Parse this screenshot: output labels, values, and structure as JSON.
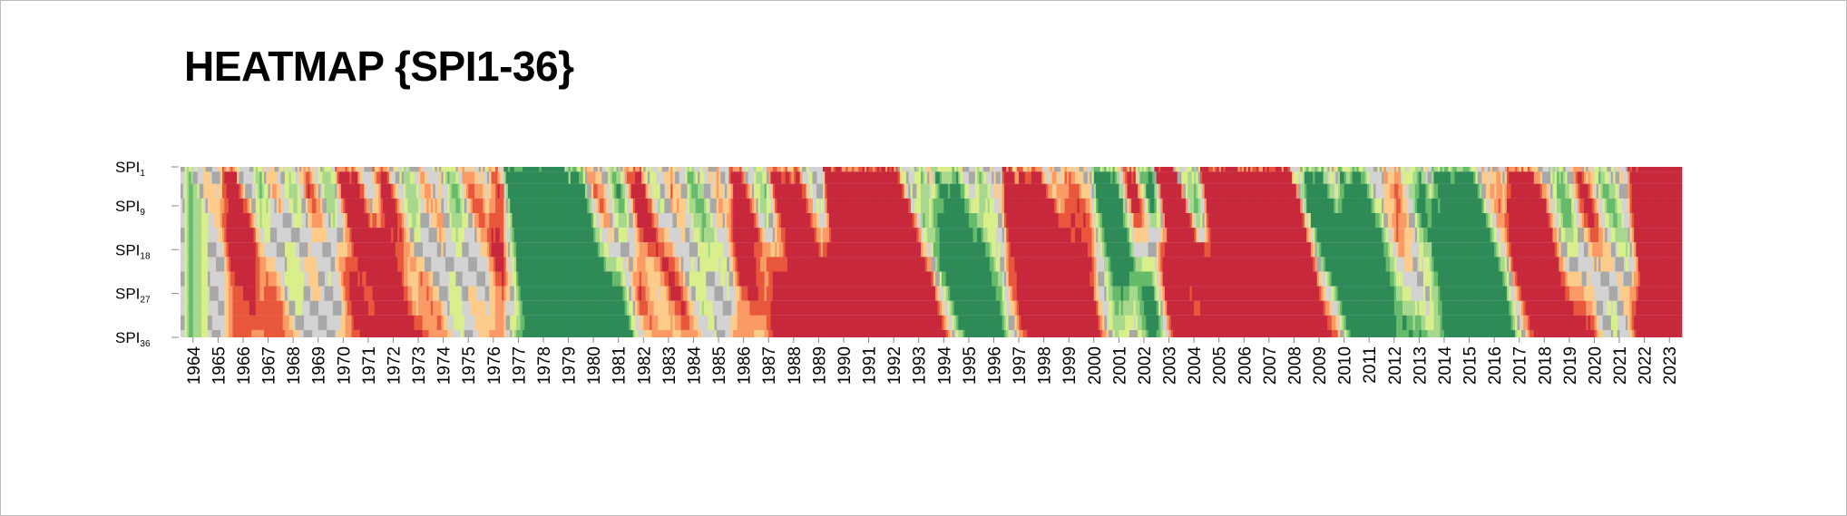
{
  "chart_data": {
    "type": "heatmap",
    "title": "HEATMAP {SPI1-36}",
    "ylabels": [
      {
        "main": "SPI",
        "sub": "1",
        "scale": 1
      },
      {
        "main": "SPI",
        "sub": "9",
        "scale": 9
      },
      {
        "main": "SPI",
        "sub": "18",
        "scale": 18
      },
      {
        "main": "SPI",
        "sub": "27",
        "scale": 27
      },
      {
        "main": "SPI",
        "sub": "36",
        "scale": 36
      }
    ],
    "x_categories": [
      "1964",
      "1965",
      "1966",
      "1967",
      "1968",
      "1969",
      "1970",
      "1971",
      "1972",
      "1973",
      "1974",
      "1975",
      "1976",
      "1977",
      "1978",
      "1979",
      "1980",
      "1981",
      "1982",
      "1983",
      "1984",
      "1985",
      "1986",
      "1987",
      "1988",
      "1989",
      "1990",
      "1991",
      "1992",
      "1993",
      "1994",
      "1995",
      "1996",
      "1997",
      "1998",
      "1999",
      "2000",
      "2001",
      "2002",
      "2003",
      "2004",
      "2005",
      "2006",
      "2007",
      "2008",
      "2009",
      "2010",
      "2011",
      "2012",
      "2013",
      "2014",
      "2015",
      "2016",
      "2017",
      "2018",
      "2019",
      "2020",
      "2021",
      "2022",
      "2023"
    ],
    "xrange": [
      1964,
      2024
    ],
    "yrange": [
      1,
      36
    ],
    "colors": {
      "extreme_wet": "#2e8b57",
      "severe_wet": "#66bb6a",
      "moderate_wet": "#a8d88e",
      "mild_wet": "#d9ef8b",
      "near_normal": "#d3d3d3",
      "near_normal_dark": "#a8a8a8",
      "mild_dry": "#fdcc8a",
      "moderate_dry": "#fc9a66",
      "severe_dry": "#e8573c",
      "extreme_dry": "#c8283c"
    },
    "episodes": [
      {
        "start": 1964.05,
        "end": 1964.35,
        "level": 1
      },
      {
        "start": 1964.6,
        "end": 1965.05,
        "level": -1
      },
      {
        "start": 1965.5,
        "end": 1966.2,
        "level": -2
      },
      {
        "start": 1966.7,
        "end": 1967.2,
        "level": 1
      },
      {
        "start": 1967.3,
        "end": 1967.8,
        "level": -1
      },
      {
        "start": 1968.0,
        "end": 1968.5,
        "level": 1
      },
      {
        "start": 1968.6,
        "end": 1969.1,
        "level": -1
      },
      {
        "start": 1969.3,
        "end": 1969.9,
        "level": 1
      },
      {
        "start": 1970.1,
        "end": 1971.0,
        "level": -2
      },
      {
        "start": 1971.6,
        "end": 1972.3,
        "level": -2
      },
      {
        "start": 1972.6,
        "end": 1973.1,
        "level": 1
      },
      {
        "start": 1973.5,
        "end": 1974.0,
        "level": -1
      },
      {
        "start": 1974.4,
        "end": 1974.9,
        "level": 1
      },
      {
        "start": 1975.1,
        "end": 1975.7,
        "level": -1
      },
      {
        "start": 1976.2,
        "end": 1976.6,
        "level": -2
      },
      {
        "start": 1976.9,
        "end": 1979.3,
        "level": 4
      },
      {
        "start": 1979.4,
        "end": 1980.0,
        "level": 2
      },
      {
        "start": 1980.1,
        "end": 1980.7,
        "level": -1
      },
      {
        "start": 1981.0,
        "end": 1981.5,
        "level": 1
      },
      {
        "start": 1981.7,
        "end": 1982.4,
        "level": -2
      },
      {
        "start": 1983.1,
        "end": 1983.6,
        "level": -1
      },
      {
        "start": 1984.1,
        "end": 1984.7,
        "level": 1
      },
      {
        "start": 1985.0,
        "end": 1985.5,
        "level": -1
      },
      {
        "start": 1985.9,
        "end": 1986.4,
        "level": -2
      },
      {
        "start": 1986.7,
        "end": 1987.3,
        "level": 1
      },
      {
        "start": 1987.4,
        "end": 1988.7,
        "level": -2
      },
      {
        "start": 1989.6,
        "end": 1992.6,
        "level": -3
      },
      {
        "start": 1993.1,
        "end": 1993.7,
        "level": 1
      },
      {
        "start": 1994.0,
        "end": 1995.0,
        "level": 2
      },
      {
        "start": 1995.5,
        "end": 1996.0,
        "level": 1
      },
      {
        "start": 1996.8,
        "end": 1997.2,
        "level": -3
      },
      {
        "start": 1997.3,
        "end": 1998.4,
        "level": -2
      },
      {
        "start": 1998.6,
        "end": 2000.1,
        "level": -1
      },
      {
        "start": 2000.4,
        "end": 2001.4,
        "level": 2
      },
      {
        "start": 2001.6,
        "end": 2002.1,
        "level": -2
      },
      {
        "start": 2002.2,
        "end": 2002.8,
        "level": 2
      },
      {
        "start": 2002.9,
        "end": 2003.6,
        "level": -4
      },
      {
        "start": 2004.1,
        "end": 2004.6,
        "level": 1
      },
      {
        "start": 2004.7,
        "end": 2008.3,
        "level": -3
      },
      {
        "start": 2008.7,
        "end": 2009.6,
        "level": 2
      },
      {
        "start": 2010.2,
        "end": 2011.3,
        "level": 2
      },
      {
        "start": 2012.0,
        "end": 2012.6,
        "level": -1
      },
      {
        "start": 2013.0,
        "end": 2013.6,
        "level": 1
      },
      {
        "start": 2014.0,
        "end": 2015.6,
        "level": 2
      },
      {
        "start": 2016.0,
        "end": 2016.6,
        "level": -1
      },
      {
        "start": 2016.9,
        "end": 2018.2,
        "level": -2
      },
      {
        "start": 2018.6,
        "end": 2019.2,
        "level": 1
      },
      {
        "start": 2019.4,
        "end": 2020.3,
        "level": -1
      },
      {
        "start": 2020.5,
        "end": 2021.1,
        "level": 1
      },
      {
        "start": 2021.3,
        "end": 2021.7,
        "level": -1
      },
      {
        "start": 2021.8,
        "end": 2024.0,
        "level": -4
      }
    ]
  }
}
